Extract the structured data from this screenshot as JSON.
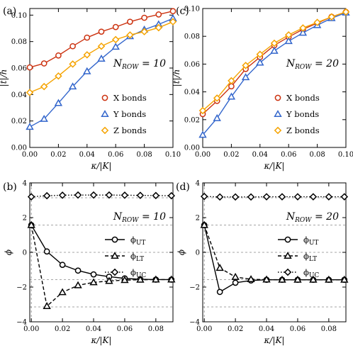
{
  "chart_data": [
    {
      "panel_label": "(a)",
      "type": "line",
      "annotation": "N_ROW = 10",
      "xlabel": "κ/|K|",
      "ylabel": "|t|/h",
      "xlim": [
        0,
        0.1
      ],
      "ylim": [
        0,
        0.105
      ],
      "xticks": [
        0,
        0.02,
        0.04,
        0.06,
        0.08,
        0.1
      ],
      "xtick_labels": [
        "0.00",
        "0.02",
        "0.04",
        "0.06",
        "0.08",
        "0.10"
      ],
      "yticks": [
        0,
        0.02,
        0.04,
        0.06,
        0.08,
        0.1
      ],
      "ytick_labels": [
        "0.00",
        "0.02",
        "0.04",
        "0.06",
        "0.08",
        "0.10"
      ],
      "grid": false,
      "legend": "bottom-right",
      "x": [
        0,
        0.01,
        0.02,
        0.03,
        0.04,
        0.05,
        0.06,
        0.07,
        0.08,
        0.09,
        0.1
      ],
      "series": [
        {
          "name": "X bonds",
          "marker": "circle",
          "color": "#cc3311",
          "values": [
            0.0605,
            0.0635,
            0.0695,
            0.0765,
            0.083,
            0.0875,
            0.091,
            0.095,
            0.098,
            0.1005,
            0.103
          ]
        },
        {
          "name": "Y bonds",
          "marker": "triangle",
          "color": "#3366cc",
          "values": [
            0.0155,
            0.0215,
            0.0335,
            0.046,
            0.0575,
            0.067,
            0.076,
            0.084,
            0.089,
            0.093,
            0.0975
          ]
        },
        {
          "name": "Z bonds",
          "marker": "diamond",
          "color": "#f5a300",
          "values": [
            0.0415,
            0.046,
            0.054,
            0.063,
            0.07,
            0.0765,
            0.0815,
            0.085,
            0.0875,
            0.0905,
            0.095
          ]
        }
      ]
    },
    {
      "panel_label": "(c)",
      "type": "line",
      "annotation": "N_ROW = 20",
      "xlabel": "κ/|K|",
      "ylabel": "|t|/h",
      "xlim": [
        0,
        0.1
      ],
      "ylim": [
        0,
        0.1
      ],
      "xticks": [
        0,
        0.02,
        0.04,
        0.06,
        0.08,
        0.1
      ],
      "xtick_labels": [
        "0.00",
        "0.02",
        "0.04",
        "0.06",
        "0.08",
        "0.10"
      ],
      "yticks": [
        0,
        0.02,
        0.04,
        0.06,
        0.08,
        0.1
      ],
      "ytick_labels": [
        "0.00",
        "0.02",
        "0.04",
        "0.06",
        "0.08",
        "0.10"
      ],
      "grid": false,
      "legend": "bottom-right",
      "x": [
        0,
        0.01,
        0.02,
        0.03,
        0.04,
        0.05,
        0.06,
        0.07,
        0.08,
        0.09,
        0.1
      ],
      "series": [
        {
          "name": "X bonds",
          "marker": "circle",
          "color": "#cc3311",
          "values": [
            0.024,
            0.0335,
            0.044,
            0.0565,
            0.065,
            0.0735,
            0.0795,
            0.085,
            0.0895,
            0.094,
            0.0975
          ]
        },
        {
          "name": "Y bonds",
          "marker": "triangle",
          "color": "#3366cc",
          "values": [
            0.009,
            0.021,
            0.0365,
            0.0505,
            0.061,
            0.0695,
            0.0765,
            0.0825,
            0.088,
            0.093,
            0.097
          ]
        },
        {
          "name": "Z bonds",
          "marker": "diamond",
          "color": "#f5a300",
          "values": [
            0.0265,
            0.0355,
            0.048,
            0.059,
            0.067,
            0.075,
            0.081,
            0.086,
            0.09,
            0.094,
            0.0975
          ]
        }
      ]
    },
    {
      "panel_label": "(b)",
      "type": "line",
      "annotation": "N_ROW = 10",
      "xlabel": "κ/|K|",
      "ylabel": "ϕ",
      "xlim": [
        -0.001,
        0.091
      ],
      "ylim": [
        -4,
        4
      ],
      "xticks": [
        0,
        0.02,
        0.04,
        0.06,
        0.08
      ],
      "xtick_labels": [
        "0.00",
        "0.02",
        "0.04",
        "0.06",
        "0.08"
      ],
      "yticks": [
        -4,
        -2,
        0,
        2,
        4
      ],
      "ytick_labels": [
        "−4",
        "−2",
        "0",
        "2",
        "4"
      ],
      "reference_lines_y": [
        3.1416,
        1.5708,
        0,
        -1.5708,
        -3.1416
      ],
      "grid": false,
      "legend": "right",
      "x": [
        0,
        0.01,
        0.02,
        0.03,
        0.04,
        0.05,
        0.06,
        0.07,
        0.08,
        0.09
      ],
      "series": [
        {
          "name": "ϕUT",
          "marker": "circle",
          "line": "solid",
          "values": [
            1.57,
            0.05,
            -0.72,
            -1.05,
            -1.27,
            -1.4,
            -1.5,
            -1.55,
            -1.57,
            -1.57
          ]
        },
        {
          "name": "ϕLT",
          "marker": "triangle",
          "line": "dashed",
          "values": [
            1.57,
            -3.1,
            -2.3,
            -1.9,
            -1.73,
            -1.65,
            -1.6,
            -1.58,
            -1.57,
            -1.57
          ]
        },
        {
          "name": "ϕUC",
          "marker": "diamond",
          "line": "dotted",
          "values": [
            3.2,
            3.26,
            3.29,
            3.3,
            3.3,
            3.3,
            3.29,
            3.28,
            3.27,
            3.26
          ]
        }
      ]
    },
    {
      "panel_label": "(d)",
      "type": "line",
      "annotation": "N_ROW = 20",
      "xlabel": "κ/|K|",
      "ylabel": "ϕ",
      "xlim": [
        -0.001,
        0.091
      ],
      "ylim": [
        -4,
        4
      ],
      "xticks": [
        0,
        0.02,
        0.04,
        0.06,
        0.08
      ],
      "xtick_labels": [
        "0.00",
        "0.02",
        "0.04",
        "0.06",
        "0.08"
      ],
      "yticks": [
        -4,
        -2,
        0,
        2,
        4
      ],
      "ytick_labels": [
        "−4",
        "−2",
        "0",
        "2",
        "4"
      ],
      "reference_lines_y": [
        3.1416,
        1.5708,
        0,
        -1.5708,
        -3.1416
      ],
      "grid": false,
      "legend": "right",
      "x": [
        0,
        0.01,
        0.02,
        0.03,
        0.04,
        0.05,
        0.06,
        0.07,
        0.08,
        0.09
      ],
      "series": [
        {
          "name": "ϕUT",
          "marker": "circle",
          "line": "solid",
          "values": [
            1.57,
            -2.28,
            -1.75,
            -1.62,
            -1.58,
            -1.58,
            -1.58,
            -1.58,
            -1.58,
            -1.58
          ]
        },
        {
          "name": "ϕLT",
          "marker": "triangle",
          "line": "dashed",
          "values": [
            1.57,
            -0.9,
            -1.42,
            -1.55,
            -1.57,
            -1.58,
            -1.58,
            -1.58,
            -1.58,
            -1.58
          ]
        },
        {
          "name": "ϕUC",
          "marker": "diamond",
          "line": "dotted",
          "values": [
            3.22,
            3.19,
            3.19,
            3.19,
            3.2,
            3.2,
            3.2,
            3.2,
            3.2,
            3.2
          ]
        }
      ]
    }
  ]
}
